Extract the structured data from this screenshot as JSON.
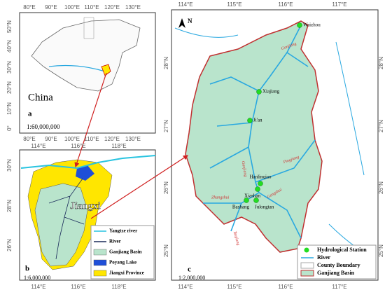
{
  "panel_a": {
    "label": "a",
    "country": "China",
    "scale": "1:60,000,000",
    "top_ticks": [
      "80°E",
      "90°E",
      "100°E",
      "110°E",
      "120°E",
      "130°E"
    ],
    "left_ticks": [
      "50°N",
      "40°N",
      "30°N",
      "20°N",
      "10°N",
      "0°"
    ],
    "bottom_ticks": [
      "80°E",
      "90°E",
      "100°E",
      "110°E",
      "120°E",
      "130°E"
    ]
  },
  "panel_b": {
    "label": "b",
    "province": "Jiangxi",
    "scale": "1:6,000,000",
    "top_ticks": [
      "114°E",
      "116°E",
      "118°E"
    ],
    "left_ticks": [
      "30°N",
      "28°N",
      "26°N"
    ],
    "bottom_ticks": [
      "114°E",
      "116°E",
      "118°E"
    ],
    "legend": [
      "Yangtze river",
      "River",
      "Ganjiang Basin",
      "Poyang Lake",
      "Jiangxi Province"
    ]
  },
  "panel_c": {
    "label": "c",
    "north": "N",
    "scale": "1:2,000,000",
    "top_ticks": [
      "114°E",
      "115°E",
      "116°E",
      "117°E"
    ],
    "left_ticks": [
      "28°N",
      "27°N",
      "26°N",
      "25°N"
    ],
    "right_ticks": [
      "28°N",
      "27°N",
      "26°N",
      "25°N"
    ],
    "bottom_ticks": [
      "114°E",
      "115°E",
      "116°E",
      "117°E"
    ],
    "stations": [
      "Waizhou",
      "Xiajiang",
      "Ji'an",
      "Hanlinqiao",
      "Xiashan",
      "Bashang",
      "Julongtan"
    ],
    "rivers": [
      "Ganjiang",
      "Pingjiang",
      "Ganjiang",
      "Zhangshui",
      "Gongshui",
      "Taojiang"
    ],
    "legend": [
      "Hydrological Station",
      "River",
      "County Boundary",
      "Ganjiang Basin"
    ]
  }
}
